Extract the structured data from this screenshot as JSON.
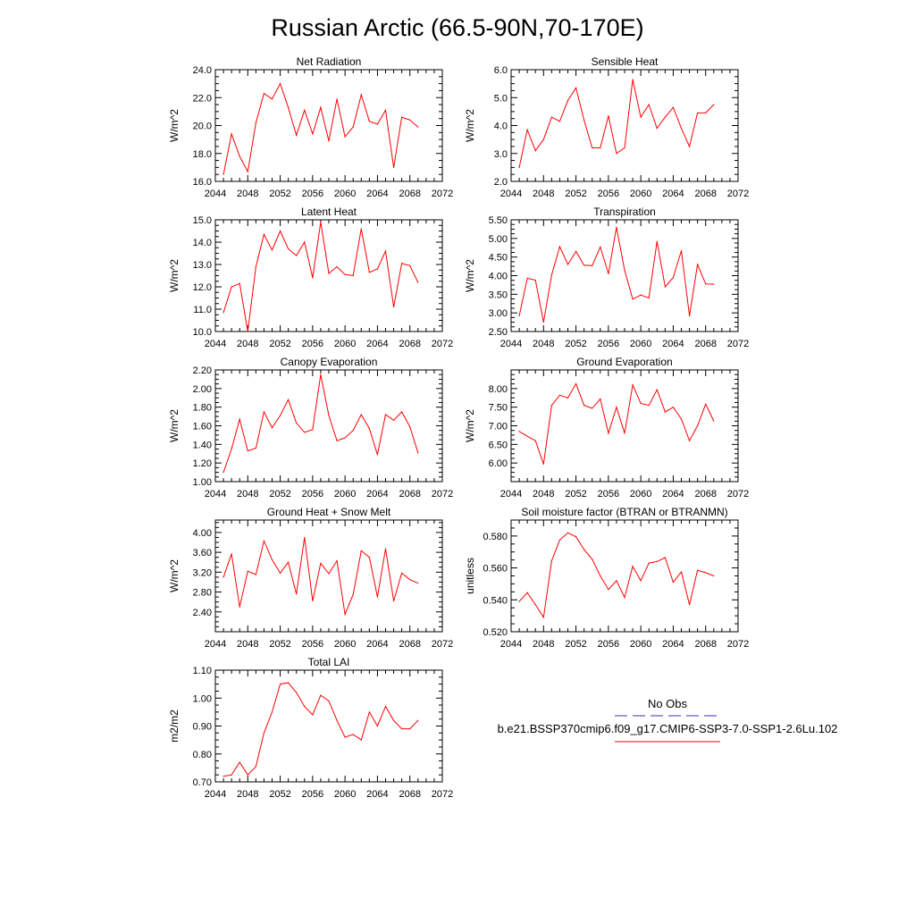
{
  "figure": {
    "title": "Russian Arctic (66.5-90N,70-170E)"
  },
  "legend": {
    "obs_label": "No Obs",
    "case_label": "b.e21.BSSP370cmip6.f09_g17.CMIP6-SSP3-7.0-SSP1-2.6Lu.102",
    "colors": {
      "obs": "#3333aa",
      "case": "#ff0000"
    }
  },
  "chart_data": [
    {
      "type": "line",
      "title": "Net Radiation",
      "ylabel": "W/m^2",
      "xlim": [
        2044,
        2072
      ],
      "ylim": [
        16,
        24
      ],
      "xticks": [
        "2044",
        "2048",
        "2052",
        "2056",
        "2060",
        "2064",
        "2068",
        "2072"
      ],
      "yticks": [
        "16.0",
        "18.0",
        "20.0",
        "22.0",
        "24.0"
      ],
      "x": [
        2045,
        2046,
        2047,
        2048,
        2049,
        2050,
        2051,
        2052,
        2053,
        2054,
        2055,
        2056,
        2057,
        2058,
        2059,
        2060,
        2061,
        2062,
        2063,
        2064,
        2065,
        2066,
        2067,
        2068,
        2069
      ],
      "series": [
        {
          "color": "#ff0000",
          "values": [
            16.5,
            19.4,
            17.8,
            16.7,
            20.2,
            22.3,
            21.9,
            23.0,
            21.3,
            19.3,
            21.1,
            19.4,
            21.3,
            18.9,
            21.9,
            19.2,
            19.9,
            22.2,
            20.3,
            20.1,
            21.1,
            17.0,
            20.6,
            20.4,
            19.9
          ]
        }
      ]
    },
    {
      "type": "line",
      "title": "Sensible Heat",
      "ylabel": "W/m^2",
      "xlim": [
        2044,
        2072
      ],
      "ylim": [
        2,
        6
      ],
      "xticks": [
        "2044",
        "2048",
        "2052",
        "2056",
        "2060",
        "2064",
        "2068",
        "2072"
      ],
      "yticks": [
        "2.0",
        "3.0",
        "4.0",
        "5.0",
        "6.0"
      ],
      "x": [
        2045,
        2046,
        2047,
        2048,
        2049,
        2050,
        2051,
        2052,
        2053,
        2054,
        2055,
        2056,
        2057,
        2058,
        2059,
        2060,
        2061,
        2062,
        2063,
        2064,
        2065,
        2066,
        2067,
        2068,
        2069
      ],
      "series": [
        {
          "color": "#ff0000",
          "values": [
            2.5,
            3.85,
            3.1,
            3.5,
            4.3,
            4.15,
            4.9,
            5.35,
            4.2,
            3.2,
            3.2,
            4.35,
            3.0,
            3.2,
            5.65,
            4.3,
            4.75,
            3.9,
            4.3,
            4.65,
            3.9,
            3.25,
            4.45,
            4.45,
            4.75
          ]
        }
      ]
    },
    {
      "type": "line",
      "title": "Latent Heat",
      "ylabel": "W/m^2",
      "xlim": [
        2044,
        2072
      ],
      "ylim": [
        10,
        15
      ],
      "xticks": [
        "2044",
        "2048",
        "2052",
        "2056",
        "2060",
        "2064",
        "2068",
        "2072"
      ],
      "yticks": [
        "10.0",
        "11.0",
        "12.0",
        "13.0",
        "14.0",
        "15.0"
      ],
      "x": [
        2045,
        2046,
        2047,
        2048,
        2049,
        2050,
        2051,
        2052,
        2053,
        2054,
        2055,
        2056,
        2057,
        2058,
        2059,
        2060,
        2061,
        2062,
        2063,
        2064,
        2065,
        2066,
        2067,
        2068,
        2069
      ],
      "series": [
        {
          "color": "#ff0000",
          "values": [
            10.85,
            12.0,
            12.15,
            10.0,
            12.9,
            14.35,
            13.65,
            14.5,
            13.7,
            13.4,
            14.0,
            12.4,
            14.9,
            12.6,
            12.9,
            12.55,
            12.5,
            14.6,
            12.65,
            12.8,
            13.6,
            11.1,
            13.05,
            12.95,
            12.2
          ]
        }
      ]
    },
    {
      "type": "line",
      "title": "Transpiration",
      "ylabel": "W/m^2",
      "xlim": [
        2044,
        2072
      ],
      "ylim": [
        2.5,
        5.5
      ],
      "xticks": [
        "2044",
        "2048",
        "2052",
        "2056",
        "2060",
        "2064",
        "2068",
        "2072"
      ],
      "yticks": [
        "2.50",
        "3.00",
        "3.50",
        "4.00",
        "4.50",
        "5.00",
        "5.50"
      ],
      "x": [
        2045,
        2046,
        2047,
        2048,
        2049,
        2050,
        2051,
        2052,
        2053,
        2054,
        2055,
        2056,
        2057,
        2058,
        2059,
        2060,
        2061,
        2062,
        2063,
        2064,
        2065,
        2066,
        2067,
        2068,
        2069
      ],
      "series": [
        {
          "color": "#ff0000",
          "values": [
            2.92,
            3.93,
            3.88,
            2.75,
            4.02,
            4.78,
            4.3,
            4.65,
            4.28,
            4.27,
            4.77,
            4.05,
            5.3,
            4.15,
            3.37,
            3.48,
            3.4,
            4.92,
            3.7,
            3.95,
            4.67,
            2.92,
            4.3,
            3.78,
            3.77
          ]
        }
      ]
    },
    {
      "type": "line",
      "title": "Canopy Evaporation",
      "ylabel": "W/m^2",
      "xlim": [
        2044,
        2072
      ],
      "ylim": [
        1.0,
        2.2
      ],
      "xticks": [
        "2044",
        "2048",
        "2052",
        "2056",
        "2060",
        "2064",
        "2068",
        "2072"
      ],
      "yticks": [
        "1.00",
        "1.20",
        "1.40",
        "1.60",
        "1.80",
        "2.00",
        "2.20"
      ],
      "x": [
        2045,
        2046,
        2047,
        2048,
        2049,
        2050,
        2051,
        2052,
        2053,
        2054,
        2055,
        2056,
        2057,
        2058,
        2059,
        2060,
        2061,
        2062,
        2063,
        2064,
        2065,
        2066,
        2067,
        2068,
        2069
      ],
      "series": [
        {
          "color": "#ff0000",
          "values": [
            1.1,
            1.35,
            1.67,
            1.33,
            1.36,
            1.75,
            1.58,
            1.71,
            1.88,
            1.63,
            1.53,
            1.56,
            2.15,
            1.71,
            1.44,
            1.47,
            1.55,
            1.72,
            1.57,
            1.29,
            1.72,
            1.66,
            1.75,
            1.59,
            1.31
          ]
        }
      ]
    },
    {
      "type": "line",
      "title": "Ground Evaporation",
      "ylabel": "W/m^2",
      "xlim": [
        2044,
        2072
      ],
      "ylim": [
        5.5,
        8.5
      ],
      "xticks": [
        "2044",
        "2048",
        "2052",
        "2056",
        "2060",
        "2064",
        "2068",
        "2072"
      ],
      "yticks": [
        "6.00",
        "6.50",
        "7.00",
        "7.50",
        "8.00"
      ],
      "x": [
        2045,
        2046,
        2047,
        2048,
        2049,
        2050,
        2051,
        2052,
        2053,
        2054,
        2055,
        2056,
        2057,
        2058,
        2059,
        2060,
        2061,
        2062,
        2063,
        2064,
        2065,
        2066,
        2067,
        2068,
        2069
      ],
      "series": [
        {
          "color": "#ff0000",
          "values": [
            6.85,
            6.72,
            6.6,
            5.97,
            7.55,
            7.82,
            7.75,
            8.13,
            7.55,
            7.47,
            7.72,
            6.8,
            7.5,
            6.8,
            8.1,
            7.6,
            7.55,
            7.97,
            7.37,
            7.5,
            7.18,
            6.6,
            7.0,
            7.58,
            7.13
          ]
        }
      ]
    },
    {
      "type": "line",
      "title": "Ground Heat + Snow Melt",
      "ylabel": "W/m^2",
      "xlim": [
        2044,
        2072
      ],
      "ylim": [
        2.0,
        4.25
      ],
      "xticks": [
        "2044",
        "2048",
        "2052",
        "2056",
        "2060",
        "2064",
        "2068",
        "2072"
      ],
      "yticks": [
        "2.40",
        "2.80",
        "3.20",
        "3.60",
        "4.00"
      ],
      "x": [
        2045,
        2046,
        2047,
        2048,
        2049,
        2050,
        2051,
        2052,
        2053,
        2054,
        2055,
        2056,
        2057,
        2058,
        2059,
        2060,
        2061,
        2062,
        2063,
        2064,
        2065,
        2066,
        2067,
        2068,
        2069
      ],
      "series": [
        {
          "color": "#ff0000",
          "values": [
            3.1,
            3.57,
            2.5,
            3.22,
            3.15,
            3.83,
            3.45,
            3.18,
            3.4,
            2.76,
            3.9,
            2.62,
            3.38,
            3.17,
            3.43,
            2.35,
            2.75,
            3.63,
            3.5,
            2.7,
            3.67,
            2.62,
            3.18,
            3.05,
            2.98
          ]
        }
      ]
    },
    {
      "type": "line",
      "title": "Soil moisture factor (BTRAN or BTRANMN)",
      "ylabel": "unitless",
      "xlim": [
        2044,
        2072
      ],
      "ylim": [
        0.52,
        0.59
      ],
      "xticks": [
        "2044",
        "2048",
        "2052",
        "2056",
        "2060",
        "2064",
        "2068",
        "2072"
      ],
      "yticks": [
        "0.520",
        "0.540",
        "0.560",
        "0.580"
      ],
      "x": [
        2045,
        2046,
        2047,
        2048,
        2049,
        2050,
        2051,
        2052,
        2053,
        2054,
        2055,
        2056,
        2057,
        2058,
        2059,
        2060,
        2061,
        2062,
        2063,
        2064,
        2065,
        2066,
        2067,
        2068,
        2069
      ],
      "series": [
        {
          "color": "#ff0000",
          "values": [
            0.539,
            0.5445,
            0.537,
            0.529,
            0.5645,
            0.5775,
            0.582,
            0.5795,
            0.5715,
            0.5655,
            0.555,
            0.5465,
            0.552,
            0.5415,
            0.561,
            0.552,
            0.563,
            0.564,
            0.5665,
            0.551,
            0.5575,
            0.537,
            0.5585,
            0.557,
            0.555
          ]
        }
      ]
    },
    {
      "type": "line",
      "title": "Total LAI",
      "ylabel": "m2/m2",
      "xlim": [
        2044,
        2072
      ],
      "ylim": [
        0.7,
        1.1
      ],
      "xticks": [
        "2044",
        "2048",
        "2052",
        "2056",
        "2060",
        "2064",
        "2068",
        "2072"
      ],
      "yticks": [
        "0.70",
        "0.80",
        "0.90",
        "1.00",
        "1.10"
      ],
      "x": [
        2045,
        2046,
        2047,
        2048,
        2049,
        2050,
        2051,
        2052,
        2053,
        2054,
        2055,
        2056,
        2057,
        2058,
        2059,
        2060,
        2061,
        2062,
        2063,
        2064,
        2065,
        2066,
        2067,
        2068,
        2069
      ],
      "series": [
        {
          "color": "#ff0000",
          "values": [
            0.72,
            0.725,
            0.77,
            0.725,
            0.755,
            0.875,
            0.95,
            1.05,
            1.055,
            1.02,
            0.97,
            0.94,
            1.01,
            0.99,
            0.92,
            0.86,
            0.87,
            0.85,
            0.95,
            0.9,
            0.97,
            0.92,
            0.89,
            0.89,
            0.92
          ]
        }
      ]
    }
  ]
}
